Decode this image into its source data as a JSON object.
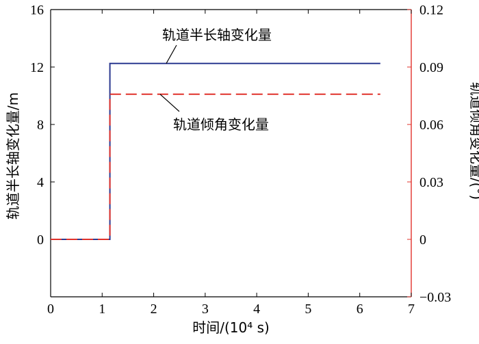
{
  "chart_data": {
    "type": "line",
    "xlabel": "时间/(10⁴ s)",
    "ylabel_left": "轨道半长轴变化量/m",
    "ylabel_right": "轨道倾角变化量/(°)",
    "xlim": [
      0,
      7
    ],
    "ylim_left": [
      -4,
      16
    ],
    "ylim_right": [
      -0.03,
      0.12
    ],
    "x_ticks": [
      "0",
      "1",
      "2",
      "3",
      "4",
      "5",
      "6",
      "7"
    ],
    "y_left_ticks": [
      "0",
      "4",
      "8",
      "12",
      "16"
    ],
    "y_right_ticks": [
      "−0.03",
      "0",
      "0.03",
      "0.06",
      "0.09",
      "0.12"
    ],
    "grid": false,
    "series": [
      {
        "name": "轨道半长轴变化量",
        "axis": "left",
        "color": "#2b3990",
        "style": "solid",
        "x": [
          0,
          1.15,
          1.15,
          6.4
        ],
        "y": [
          0,
          0,
          12.25,
          12.25
        ]
      },
      {
        "name": "轨道倾角变化量",
        "axis": "right",
        "color": "#e0312a",
        "style": "dashed",
        "x": [
          0,
          1.15,
          1.15,
          6.4
        ],
        "y": [
          0,
          0,
          0.0758,
          0.0758
        ]
      }
    ],
    "annotations": [
      {
        "text": "轨道半长轴变化量",
        "series": 0
      },
      {
        "text": "轨道倾角变化量",
        "series": 1
      }
    ]
  },
  "colors": {
    "left_axis": "#000000",
    "right_axis": "#e0312a"
  }
}
